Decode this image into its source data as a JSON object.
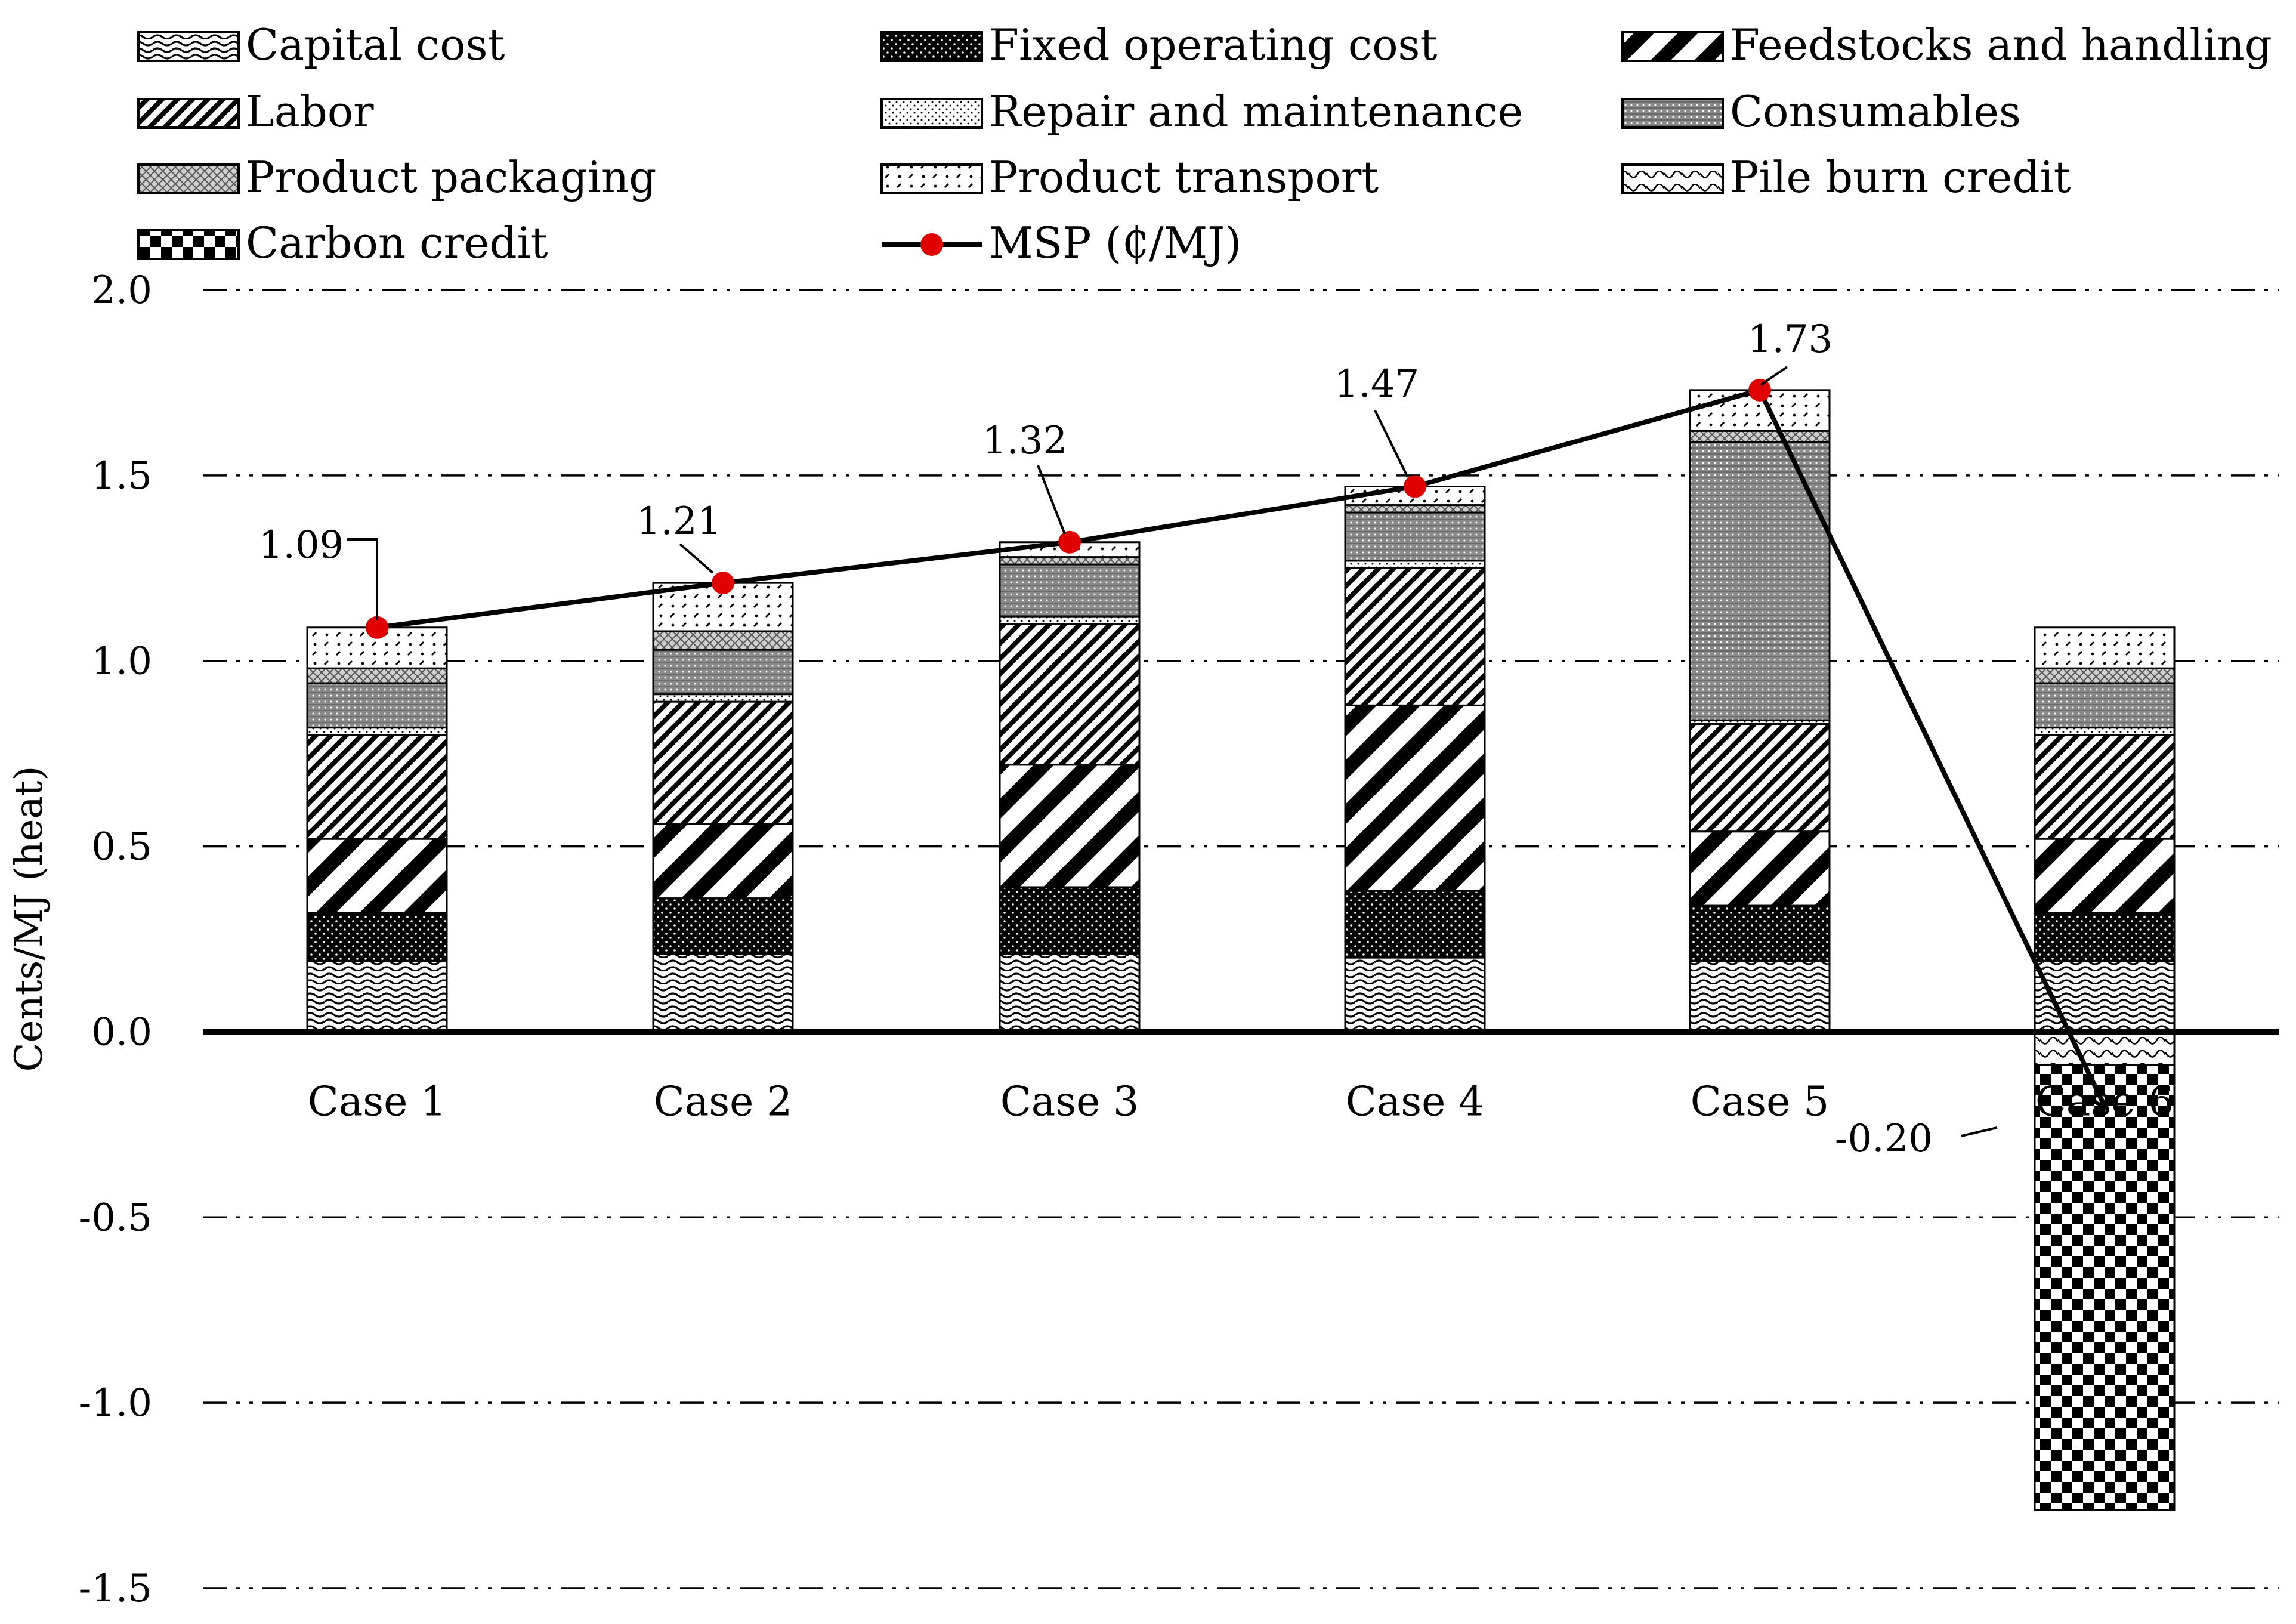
{
  "chart_data": {
    "type": "bar",
    "stacked": true,
    "title": "",
    "xlabel": "",
    "ylabel": "Cents/MJ (heat)",
    "ylim": [
      -1.5,
      2.0
    ],
    "yticks": [
      -1.5,
      -1.0,
      -0.5,
      0.0,
      0.5,
      1.0,
      1.5,
      2.0
    ],
    "ytick_labels": [
      "-1.5",
      "-1.0",
      "-0.5",
      "0.0",
      "0.5",
      "1.0",
      "1.5",
      "2.0"
    ],
    "grid": true,
    "legend_position": "top",
    "categories": [
      "Case 1",
      "Case 2",
      "Case 3",
      "Case 4",
      "Case 5",
      "Case 6"
    ],
    "series": [
      {
        "name": "Capital cost",
        "pattern": "wave",
        "values": [
          0.19,
          0.21,
          0.21,
          0.2,
          0.19,
          0.19
        ]
      },
      {
        "name": "Fixed operating cost",
        "pattern": "dense-dots",
        "values": [
          0.13,
          0.15,
          0.18,
          0.18,
          0.15,
          0.13
        ]
      },
      {
        "name": "Feedstocks and handling",
        "pattern": "wide-diagonal",
        "values": [
          0.2,
          0.2,
          0.33,
          0.5,
          0.2,
          0.2
        ]
      },
      {
        "name": "Labor",
        "pattern": "diagonal",
        "values": [
          0.28,
          0.33,
          0.38,
          0.37,
          0.29,
          0.28
        ]
      },
      {
        "name": "Repair and maintenance",
        "pattern": "fine-dots",
        "values": [
          0.02,
          0.02,
          0.02,
          0.02,
          0.01,
          0.02
        ]
      },
      {
        "name": "Consumables",
        "pattern": "grid-dots",
        "values": [
          0.12,
          0.12,
          0.14,
          0.13,
          0.75,
          0.12
        ]
      },
      {
        "name": "Product packaging",
        "pattern": "crosshatch",
        "values": [
          0.04,
          0.05,
          0.02,
          0.02,
          0.03,
          0.04
        ]
      },
      {
        "name": "Product transport",
        "pattern": "dash-dots",
        "values": [
          0.11,
          0.13,
          0.04,
          0.05,
          0.11,
          0.11
        ]
      },
      {
        "name": "Pile burn credit",
        "pattern": "light-diagonal",
        "values": [
          0,
          0,
          0,
          0,
          0,
          -0.09
        ]
      },
      {
        "name": "Carbon credit",
        "pattern": "checker",
        "values": [
          0,
          0,
          0,
          0,
          0,
          -1.2
        ]
      }
    ],
    "line_series": {
      "name": "MSP (₵/MJ)",
      "values": [
        1.09,
        1.21,
        1.32,
        1.47,
        1.73,
        -0.2
      ],
      "labels": [
        "1.09",
        "1.21",
        "1.32",
        "1.47",
        "1.73",
        "-0.20"
      ],
      "color": "#e00000"
    },
    "legend_items": [
      "Capital cost",
      "Fixed operating cost",
      "Feedstocks and handling",
      "Labor",
      "Repair and maintenance",
      "Consumables",
      "Product packaging",
      "Product transport",
      "Pile burn credit",
      "Carbon credit",
      "MSP (₵/MJ)"
    ]
  }
}
